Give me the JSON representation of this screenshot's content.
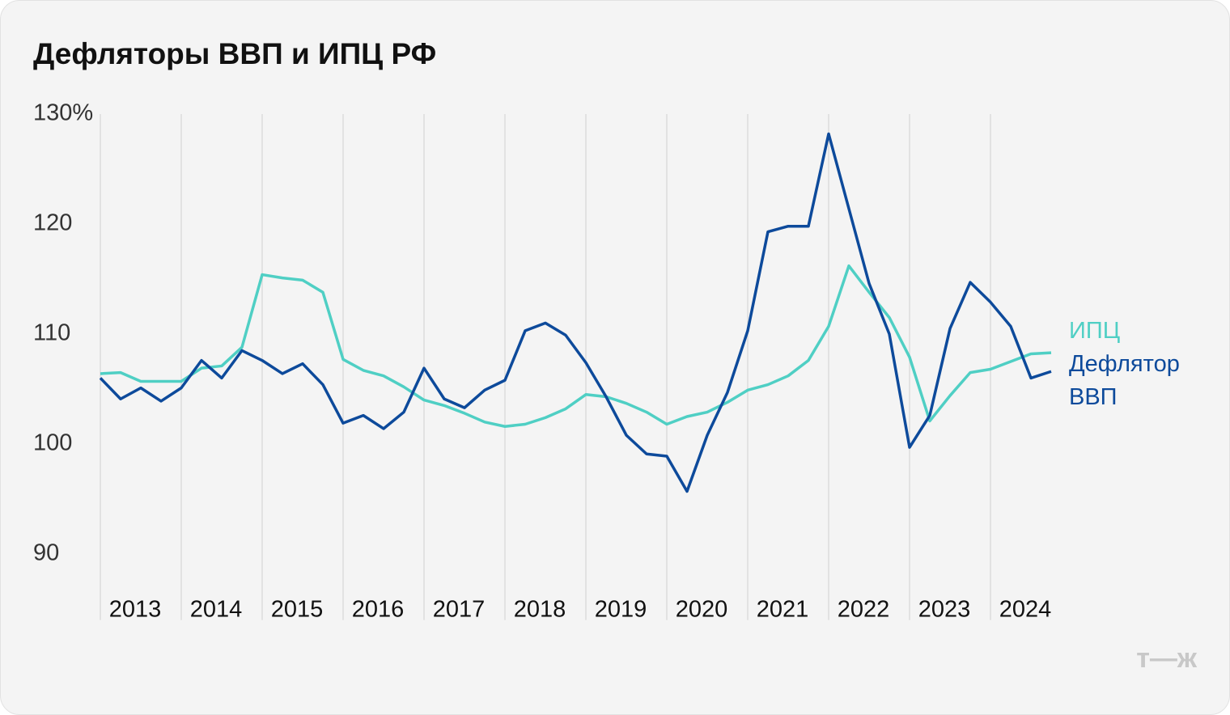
{
  "chart_data": {
    "type": "line",
    "title": "Дефляторы ВВП и ИПЦ РФ",
    "categories": [
      "2013",
      null,
      null,
      null,
      "2014",
      null,
      null,
      null,
      "2015",
      null,
      null,
      null,
      "2016",
      null,
      null,
      null,
      "2017",
      null,
      null,
      null,
      "2018",
      null,
      null,
      null,
      "2019",
      null,
      null,
      null,
      "2020",
      null,
      null,
      null,
      "2021",
      null,
      null,
      null,
      "2022",
      null,
      null,
      null,
      "2023",
      null,
      null,
      null,
      "2024",
      null,
      null,
      null
    ],
    "series": [
      {
        "name": "ИПЦ",
        "color": "#4fcfc4",
        "values": [
          106.4,
          106.5,
          105.7,
          105.7,
          105.7,
          106.9,
          107.1,
          108.8,
          115.4,
          115.1,
          114.9,
          113.8,
          107.7,
          106.7,
          106.2,
          105.2,
          104.0,
          103.5,
          102.8,
          102.0,
          101.6,
          101.8,
          102.4,
          103.2,
          104.5,
          104.3,
          103.7,
          102.9,
          101.8,
          102.5,
          102.9,
          103.8,
          104.9,
          105.4,
          106.2,
          107.6,
          110.7,
          116.2,
          113.8,
          111.5,
          107.9,
          102.1,
          104.4,
          106.5,
          106.8,
          107.5,
          108.2,
          108.3
        ]
      },
      {
        "name": "Дефлятор ВВП",
        "color": "#0d4a9b",
        "values": [
          106.0,
          104.1,
          105.1,
          103.9,
          105.1,
          107.6,
          106.0,
          108.5,
          107.6,
          106.4,
          107.3,
          105.4,
          101.9,
          102.6,
          101.4,
          102.9,
          106.9,
          104.1,
          103.3,
          104.9,
          105.8,
          110.3,
          111.0,
          109.9,
          107.4,
          104.3,
          100.8,
          99.1,
          98.9,
          95.7,
          100.8,
          104.7,
          110.3,
          119.3,
          119.8,
          119.8,
          128.2,
          121.4,
          114.6,
          110.0,
          99.7,
          102.6,
          110.5,
          114.7,
          112.9,
          110.7,
          106.0,
          106.6
        ]
      }
    ],
    "ylim": [
      84,
      130
    ],
    "yticks": [
      90,
      100,
      110,
      120,
      {
        "value": 130,
        "label": "130%"
      }
    ],
    "xgrid": true,
    "logo": "т—ж"
  }
}
